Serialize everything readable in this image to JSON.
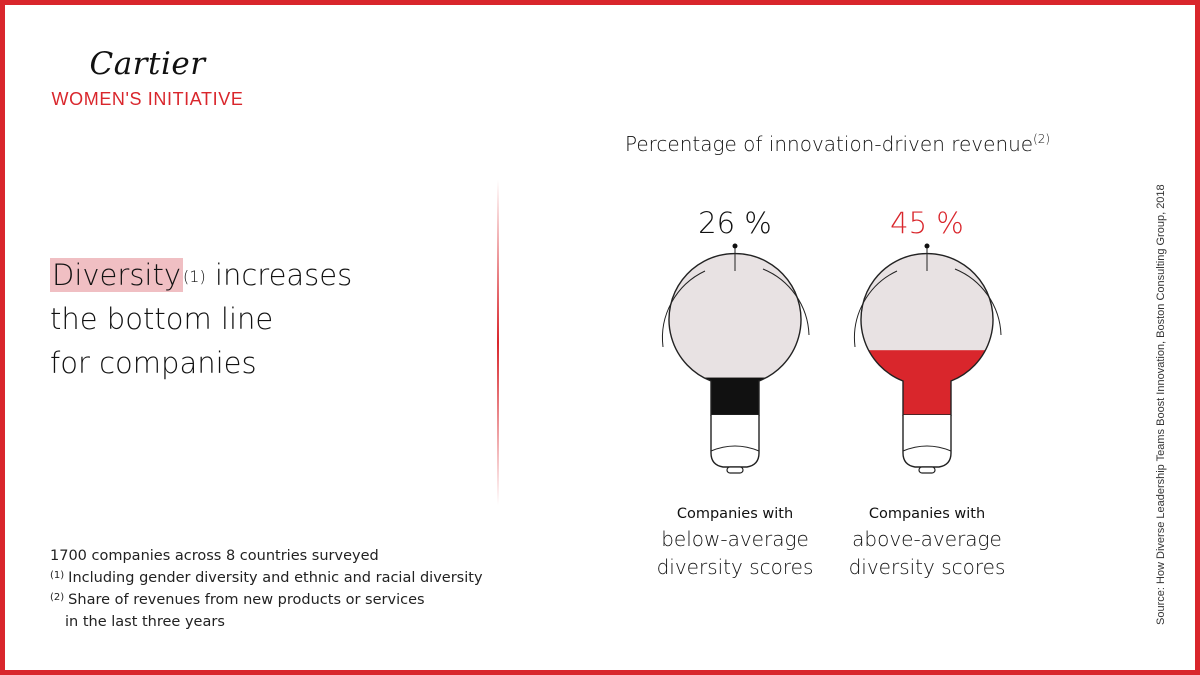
{
  "brand": {
    "name": "Cartier",
    "initiative": "WOMEN'S INITIATIVE",
    "accent_color": "#d9262c"
  },
  "headline": {
    "highlight": "Diversity",
    "highlight_sup": "(1)",
    "rest_line1": " increases",
    "line2": "the bottom line",
    "line3": "for companies"
  },
  "notes": {
    "line1": "1700 companies across 8 countries surveyed",
    "n1_marker": "(1)",
    "n1_text": "Including gender diversity and ethnic and racial diversity",
    "n2_marker": "(2)",
    "n2_text_line1": "Share of revenues from new products or services",
    "n2_text_line2": "in the last three years"
  },
  "source": "Source: How Diverse Leadership Teams Boost Innovation, Boston Consulting Group, 2018",
  "chart_data": {
    "type": "bar",
    "title": "Percentage of innovation-driven revenue",
    "title_sup": "(2)",
    "unit": "%",
    "categories": [
      {
        "line1": "Companies with",
        "line2": "below-average",
        "line3": "diversity scores"
      },
      {
        "line1": "Companies with",
        "line2": "above-average",
        "line3": "diversity scores"
      }
    ],
    "values": [
      26,
      45
    ],
    "value_labels": [
      "26 %",
      "45 %"
    ],
    "colors": [
      "#111111",
      "#d9262c"
    ],
    "bulb_color": "#e8e2e3",
    "ylim": [
      0,
      100
    ]
  }
}
